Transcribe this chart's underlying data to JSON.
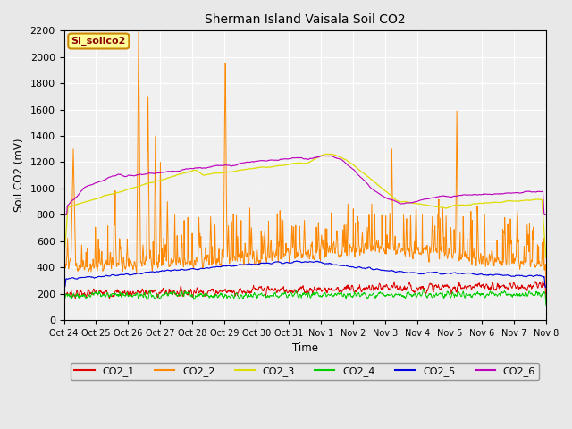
{
  "title": "Sherman Island Vaisala Soil CO2",
  "ylabel": "Soil CO2 (mV)",
  "xlabel": "Time",
  "annotation": "SI_soilco2",
  "ylim": [
    0,
    2200
  ],
  "yticks": [
    0,
    200,
    400,
    600,
    800,
    1000,
    1200,
    1400,
    1600,
    1800,
    2000,
    2200
  ],
  "xtick_labels": [
    "Oct 24",
    "Oct 25",
    "Oct 26",
    "Oct 27",
    "Oct 28",
    "Oct 29",
    "Oct 30",
    "Oct 31",
    "Nov 1",
    "Nov 2",
    "Nov 3",
    "Nov 4",
    "Nov 5",
    "Nov 6",
    "Nov 7",
    "Nov 8"
  ],
  "series_colors": {
    "CO2_1": "#dd0000",
    "CO2_2": "#ff8800",
    "CO2_3": "#dddd00",
    "CO2_4": "#00cc00",
    "CO2_5": "#0000dd",
    "CO2_6": "#bb00bb"
  },
  "bg_color": "#e8e8e8",
  "plot_bg": "#f0f0f0"
}
